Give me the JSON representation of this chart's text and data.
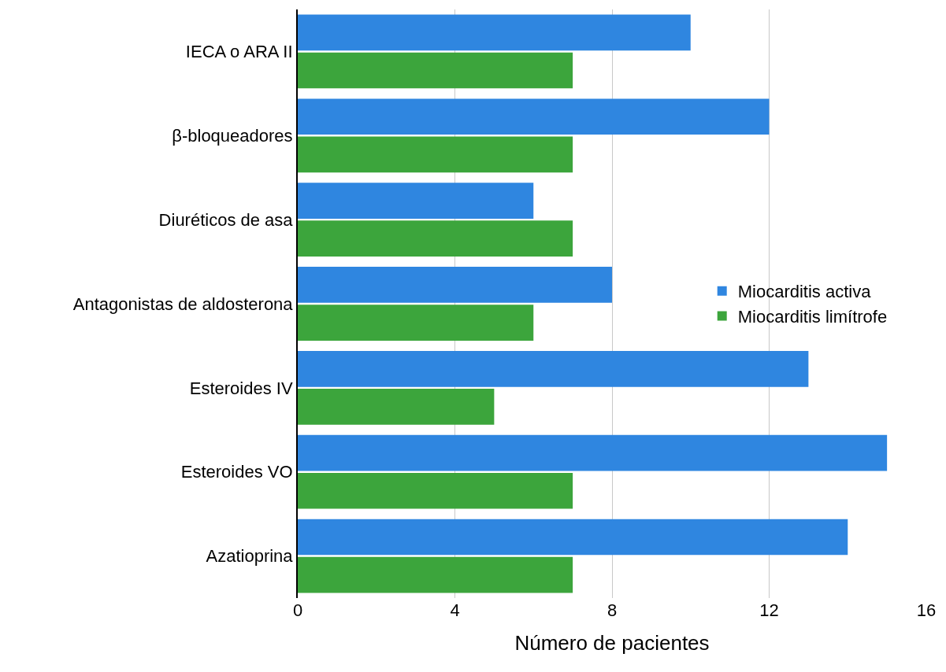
{
  "chart_data": {
    "type": "bar",
    "orientation": "horizontal",
    "xlabel": "Número de pacientes",
    "categories": [
      "IECA o ARA II",
      "β-bloqueadores",
      "Diuréticos de asa",
      "Antagonistas de aldosterona",
      "Esteroides IV",
      "Esteroides VO",
      "Azatioprina"
    ],
    "series": [
      {
        "name": "Miocarditis activa",
        "color": "#2f86e0",
        "values": [
          10,
          12,
          6,
          8,
          13,
          15,
          14
        ]
      },
      {
        "name": "Miocarditis limítrofe",
        "color": "#3ca53c",
        "values": [
          7,
          7,
          7,
          6,
          5,
          7,
          7
        ]
      }
    ],
    "xlim": [
      0,
      16
    ],
    "xticks": [
      0,
      4,
      8,
      12,
      16
    ],
    "grid": "x",
    "legend": "right"
  }
}
